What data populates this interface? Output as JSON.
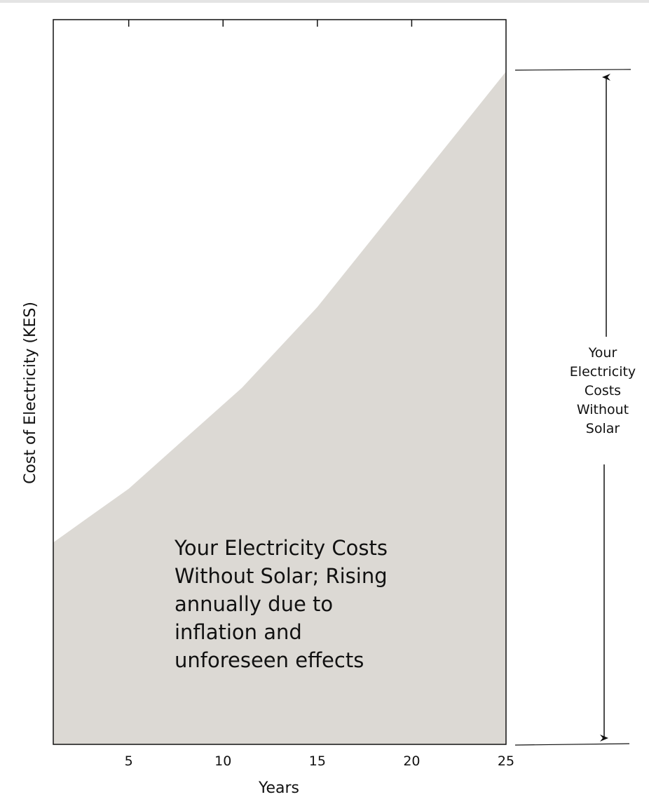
{
  "chart_data": {
    "type": "area",
    "x_min": 1,
    "x_max": 25,
    "x_ticks": [
      5,
      10,
      15,
      20,
      25
    ],
    "x_tick_labels": [
      "5",
      "10",
      "15",
      "20",
      "25"
    ],
    "y_relative_to_final": {
      "x": [
        1,
        3,
        5,
        7,
        9,
        11,
        13,
        15,
        17,
        19,
        21,
        23,
        25
      ],
      "y": [
        0.3,
        0.34,
        0.38,
        0.43,
        0.48,
        0.53,
        0.59,
        0.65,
        0.72,
        0.79,
        0.86,
        0.93,
        1.0
      ]
    },
    "xlabel": "Years",
    "ylabel": "Cost of Electricity (KES)",
    "area_annotation": [
      "Your Electricity Costs",
      "Without Solar; Rising",
      "annually due to",
      "inflation and",
      "unforeseen effects"
    ],
    "side_annotation": [
      "Your",
      "Electricity",
      "Costs",
      "Without",
      "Solar"
    ],
    "grid": false,
    "fill_color": "#dcd9d4",
    "frame_color": "#111111"
  }
}
